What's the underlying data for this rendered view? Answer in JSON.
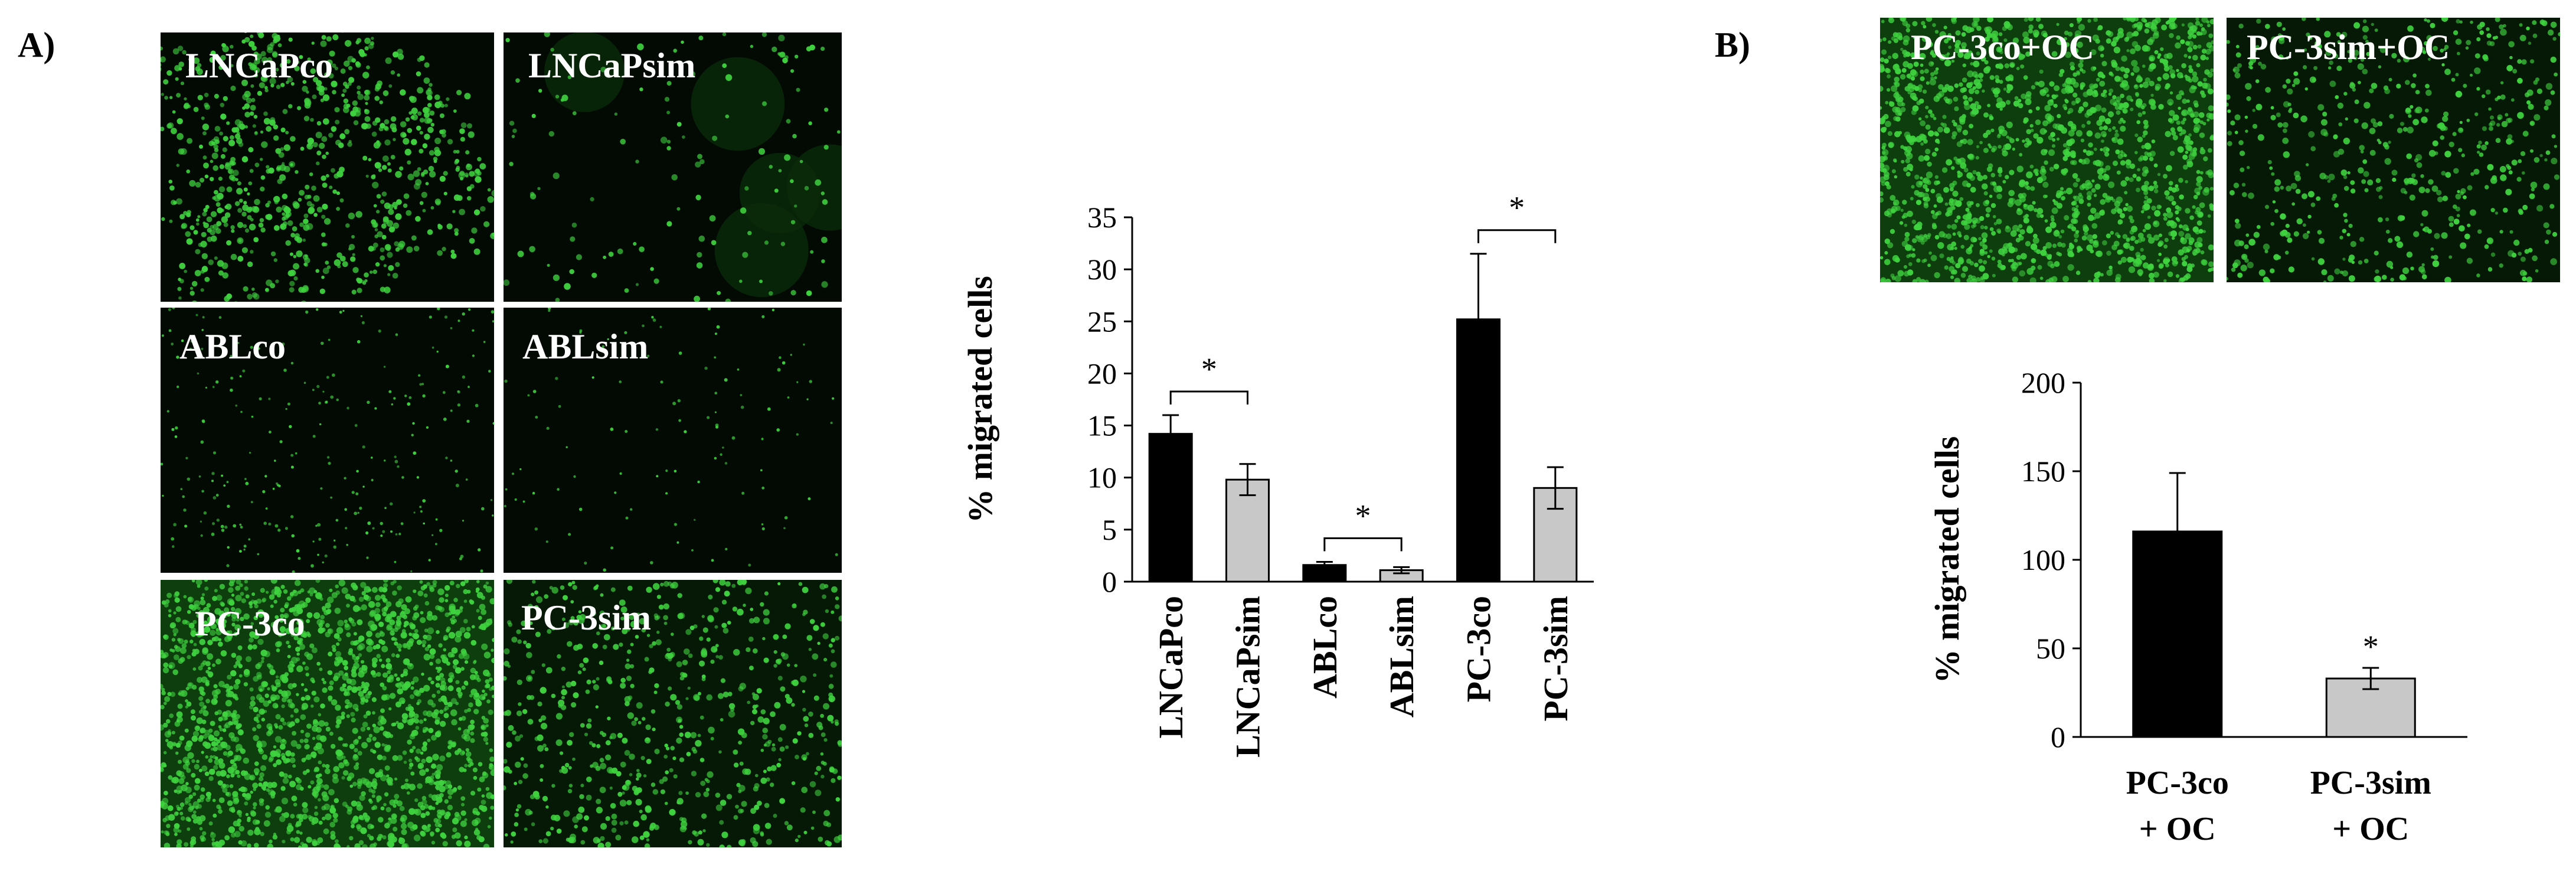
{
  "panels": {
    "a_label": "A)",
    "b_label": "B)"
  },
  "micrographs": [
    {
      "id": "lncapco",
      "label": "LNCaPco",
      "density": 0.45,
      "pattern": "clusters"
    },
    {
      "id": "lncapsim",
      "label": "LNCaPsim",
      "density": 0.05,
      "pattern": "sparse-blurred"
    },
    {
      "id": "ablco",
      "label": "ABLco",
      "density": 0.12,
      "pattern": "fine-dots"
    },
    {
      "id": "ablsim",
      "label": "ABLsim",
      "density": 0.04,
      "pattern": "fine-dots"
    },
    {
      "id": "pc3co",
      "label": "PC-3co",
      "density": 1.0,
      "pattern": "dense"
    },
    {
      "id": "pc3sim",
      "label": "PC-3sim",
      "density": 0.35,
      "pattern": "scattered"
    },
    {
      "id": "pc3co_oc",
      "label": "PC-3co+OC",
      "density": 0.9,
      "pattern": "dense"
    },
    {
      "id": "pc3sim_oc",
      "label": "PC-3sim+OC",
      "density": 0.3,
      "pattern": "scattered"
    }
  ],
  "colors": {
    "control_bar": "#000000",
    "treated_bar": "#c8c8c8",
    "cell_green": "#3fd23f",
    "micrograph_background": "#030a03"
  },
  "chart_data": [
    {
      "type": "bar",
      "panel": "A",
      "ylabel": "% migrated cells",
      "ylim": [
        0,
        35
      ],
      "yticks": [
        0,
        5,
        10,
        15,
        20,
        25,
        30,
        35
      ],
      "categories": [
        "LNCaPco",
        "LNCaPsim",
        "ABLco",
        "ABLsim",
        "PC-3co",
        "PC-3sim"
      ],
      "values": [
        14.2,
        9.8,
        1.6,
        1.1,
        25.2,
        9.0
      ],
      "errors": [
        1.8,
        1.5,
        0.3,
        0.3,
        6.3,
        2.0
      ],
      "bar_colors": [
        "#000000",
        "#c8c8c8",
        "#000000",
        "#c8c8c8",
        "#000000",
        "#c8c8c8"
      ],
      "significance": [
        {
          "from": 0,
          "to": 1,
          "label": "*"
        },
        {
          "from": 2,
          "to": 3,
          "label": "*"
        },
        {
          "from": 4,
          "to": 5,
          "label": "*"
        }
      ],
      "grid": false
    },
    {
      "type": "bar",
      "panel": "B",
      "ylabel": "% migrated cells",
      "ylim": [
        0,
        200
      ],
      "yticks": [
        0,
        50,
        100,
        150,
        200
      ],
      "categories": [
        [
          "PC-3co",
          "+ OC"
        ],
        [
          "PC-3sim",
          "+ OC"
        ]
      ],
      "values": [
        116,
        33
      ],
      "errors": [
        33,
        6
      ],
      "bar_colors": [
        "#000000",
        "#c8c8c8"
      ],
      "bar_annotations": [
        "",
        "*"
      ],
      "grid": false
    }
  ]
}
